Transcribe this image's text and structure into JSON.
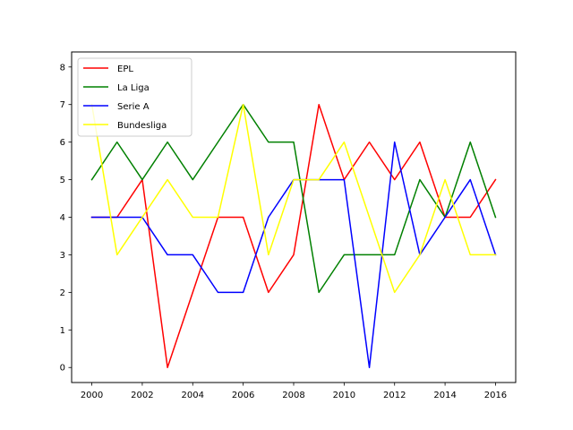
{
  "chart_data": {
    "type": "line",
    "x": [
      2000,
      2001,
      2002,
      2003,
      2004,
      2005,
      2006,
      2007,
      2008,
      2009,
      2010,
      2011,
      2012,
      2013,
      2014,
      2015,
      2016
    ],
    "xlim": [
      1999.2,
      2016.8
    ],
    "ylim": [
      -0.4,
      8.4
    ],
    "xticks": [
      2000,
      2002,
      2004,
      2006,
      2008,
      2010,
      2012,
      2014,
      2016
    ],
    "yticks": [
      0,
      1,
      2,
      3,
      4,
      5,
      6,
      7,
      8
    ],
    "legend_position": "top-left",
    "grid": false,
    "series": [
      {
        "name": "EPL",
        "color": "#ff0000",
        "values": [
          4,
          4,
          5,
          0,
          2,
          4,
          4,
          2,
          3,
          7,
          5,
          6,
          5,
          6,
          4,
          4,
          5
        ]
      },
      {
        "name": "La Liga",
        "color": "#008000",
        "values": [
          5,
          6,
          5,
          6,
          5,
          6,
          7,
          6,
          6,
          2,
          3,
          3,
          3,
          5,
          4,
          6,
          4
        ]
      },
      {
        "name": "Serie A",
        "color": "#0000ff",
        "values": [
          4,
          4,
          4,
          3,
          3,
          2,
          2,
          4,
          5,
          5,
          5,
          0,
          6,
          3,
          4,
          5,
          3
        ]
      },
      {
        "name": "Bundesliga",
        "color": "#ffff00",
        "values": [
          7,
          3,
          4,
          5,
          4,
          4,
          7,
          3,
          5,
          5,
          6,
          4,
          2,
          3,
          5,
          3,
          3
        ]
      }
    ]
  }
}
